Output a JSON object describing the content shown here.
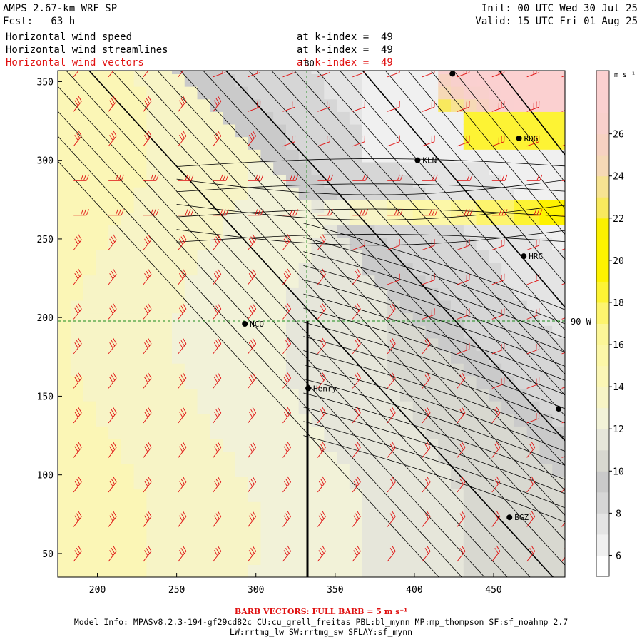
{
  "header": {
    "title": "AMPS 2.67-km WRF SP",
    "init": "Init: 00 UTC Wed 30 Jul 25",
    "fcst": "Fcst:   63 h",
    "valid": "Valid: 15 UTC Fri 01 Aug 25",
    "fields": [
      {
        "name": "Horizontal wind speed",
        "level": "at k-index =  49",
        "color": "#000000"
      },
      {
        "name": "Horizontal wind streamlines",
        "level": "at k-index =  49",
        "color": "#000000"
      },
      {
        "name": "Horizontal wind vectors",
        "level": "at k-index =  49",
        "color": "#e01010"
      }
    ]
  },
  "map_labels": {
    "meridian": "180",
    "parallel": "90 W"
  },
  "stations": [
    {
      "id": "KLN",
      "x": 402,
      "y": 300
    },
    {
      "id": "RDG",
      "x": 466,
      "y": 314
    },
    {
      "id": "HRC",
      "x": 469,
      "y": 239
    },
    {
      "id": "NCO",
      "x": 293,
      "y": 196
    },
    {
      "id": "Henry",
      "x": 333,
      "y": 155
    },
    {
      "id": "BGZ",
      "x": 460,
      "y": 73
    },
    {
      "id": "",
      "x": 424,
      "y": 355
    },
    {
      "id": "",
      "x": 491,
      "y": 142
    }
  ],
  "colorbar": {
    "unit": "m s⁻¹",
    "levels": [
      5,
      6,
      7,
      8,
      9,
      10,
      11,
      12,
      13,
      14,
      15,
      16,
      17,
      18,
      19,
      20,
      21,
      22,
      23,
      24,
      25,
      26,
      27,
      28,
      29
    ],
    "tick_labels": [
      "6",
      "8",
      "10",
      "12",
      "14",
      "16",
      "18",
      "20",
      "22",
      "24",
      "26"
    ],
    "colors": [
      "#ffffff",
      "#f0f0f0",
      "#e4e4e4",
      "#d6d6d6",
      "#cacaca",
      "#d8d8d0",
      "#e6e6da",
      "#f2f2d8",
      "#f7f4c6",
      "#fbf6b6",
      "#fcf7a8",
      "#fcf698",
      "#fdf46e",
      "#fdf334",
      "#fef200",
      "#fdf300",
      "#fbf000",
      "#f8e95e",
      "#f7e392",
      "#f6d9b6",
      "#f7d2c2",
      "#f8d0cc",
      "#fad0d0",
      "#fbd0d0"
    ]
  },
  "chart_data": {
    "type": "map",
    "x_ticks": [
      200,
      250,
      300,
      350,
      400,
      450
    ],
    "y_ticks": [
      50,
      100,
      150,
      200,
      250,
      300,
      350
    ],
    "xlim": [
      175,
      495
    ],
    "ylim": [
      35,
      357
    ],
    "fill_field": "horizontal wind speed (m s-1)",
    "fill_range": [
      5,
      29
    ]
  },
  "footer": {
    "barb_note": "BARB VECTORS:  FULL BARB = 5 m s⁻¹",
    "model_info": "Model Info: MPASv8.2.3-194-gf29cd82c CU:cu_grell_freitas PBL:bl_mynn MP:mp_thompson SF:sf_noahmp 2.7",
    "model_info2": "LW:rrtmg_lw SW:rrtmg_sw SFLAY:sf_mynn"
  }
}
